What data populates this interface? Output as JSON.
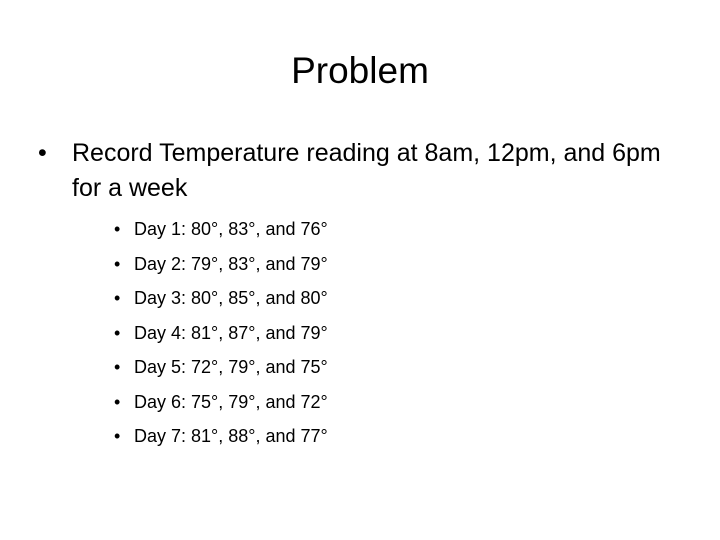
{
  "slide": {
    "title": "Problem",
    "bullet_char": "•",
    "main_bullet": {
      "text": "Record Temperature reading at 8am, 12pm, and 6pm for a week"
    },
    "sub_bullets": [
      {
        "text": "Day 1: 80°, 83°, and 76°"
      },
      {
        "text": "Day 2: 79°, 83°, and 79°"
      },
      {
        "text": "Day 3: 80°, 85°, and 80°"
      },
      {
        "text": "Day 4: 81°, 87°, and 79°"
      },
      {
        "text": "Day 5: 72°, 79°, and 75°"
      },
      {
        "text": "Day 6: 75°, 79°, and 72°"
      },
      {
        "text": "Day 7: 81°, 88°, and 77°"
      }
    ]
  }
}
